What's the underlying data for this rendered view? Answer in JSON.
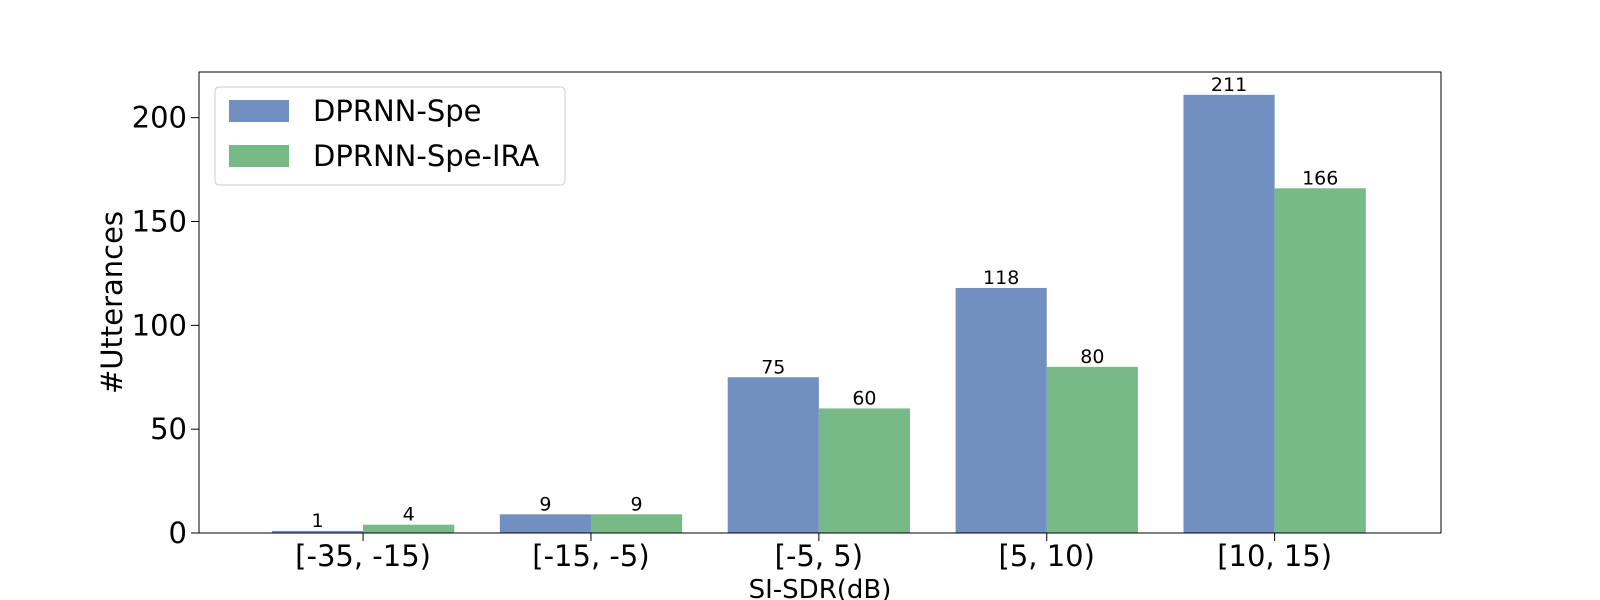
{
  "chart_data": {
    "type": "bar",
    "title": "",
    "xlabel": "SI-SDR(dB)",
    "ylabel": "#Utterances",
    "categories": [
      "[-35, -15)",
      "[-15, -5)",
      "[-5, 5)",
      "[5, 10)",
      "[10, 15)"
    ],
    "series": [
      {
        "name": "DPRNN-Spe",
        "values": [
          1,
          9,
          75,
          118,
          211
        ],
        "color": "#7190c1"
      },
      {
        "name": "DPRNN-Spe-IRA",
        "values": [
          4,
          9,
          60,
          80,
          166
        ],
        "color": "#78b988"
      }
    ],
    "ylim": [
      0,
      222
    ],
    "yticks": [
      0,
      50,
      100,
      150,
      200
    ],
    "grid": false,
    "legend_position": "top-left",
    "data_labels": true
  }
}
